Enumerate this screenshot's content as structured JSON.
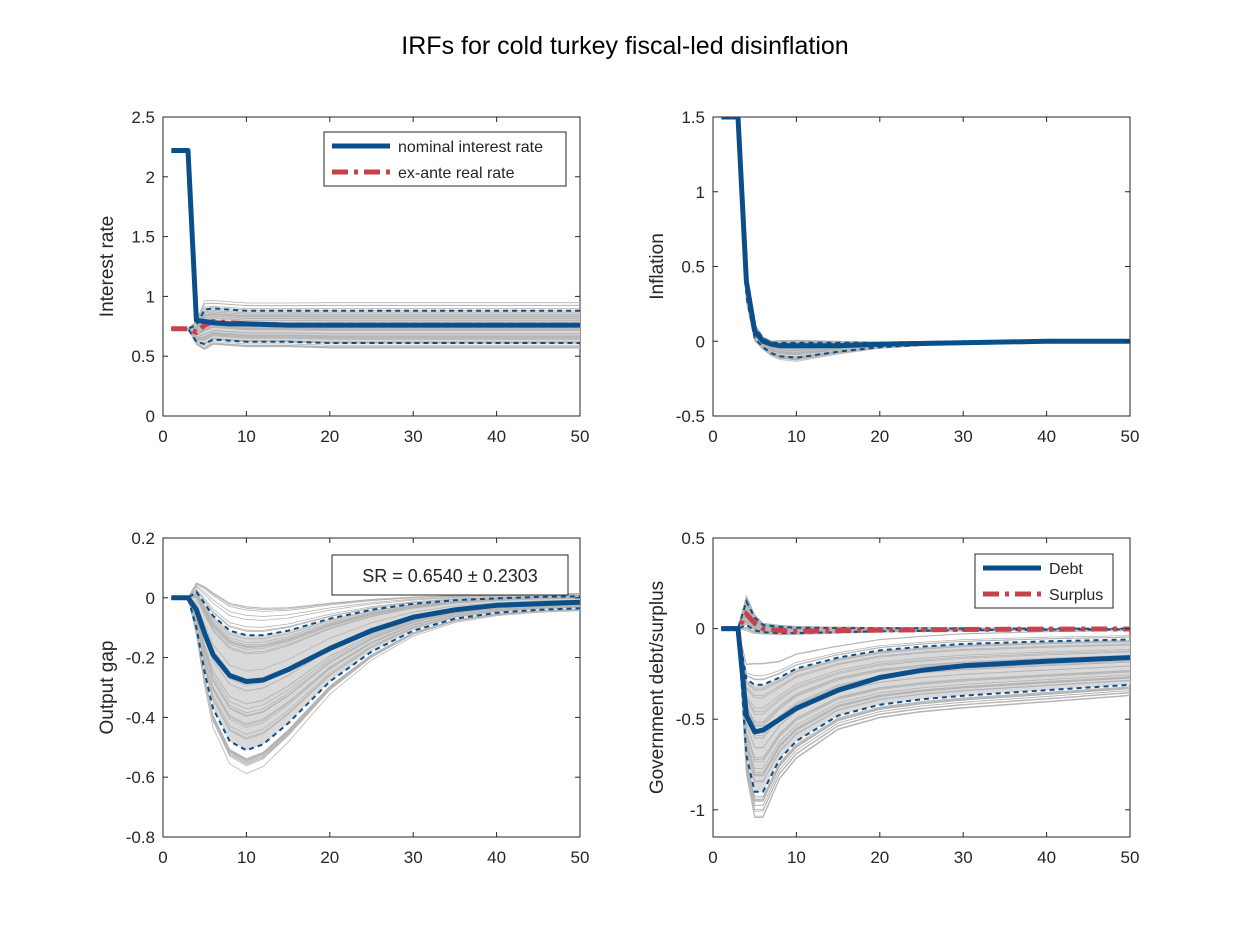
{
  "figure": {
    "title": "IRFs for cold turkey fiscal-led disinflation",
    "colors": {
      "blue": "#0b4f8a",
      "red": "#c8424b",
      "grey": "#b4b4b4",
      "band": "#d9d9d9"
    }
  },
  "chart_data": [
    {
      "type": "line",
      "id": "interest",
      "ylabel": "Interest rate",
      "xlabel": "",
      "xlim": [
        0,
        50
      ],
      "ylim": [
        0,
        2.5
      ],
      "xticks": [
        "0",
        "10",
        "20",
        "30",
        "40",
        "50"
      ],
      "yticks": [
        "0",
        "0.5",
        "1",
        "1.5",
        "2",
        "2.5"
      ],
      "legend": {
        "position": "top-right",
        "entries": [
          "nominal interest rate",
          "ex-ante real rate"
        ]
      },
      "series": [
        {
          "name": "nominal interest rate",
          "style": "solid-blue",
          "x": [
            1,
            2,
            3,
            4,
            5,
            6,
            8,
            10,
            15,
            20,
            30,
            40,
            50
          ],
          "y": [
            2.22,
            2.22,
            2.22,
            0.8,
            0.79,
            0.78,
            0.77,
            0.77,
            0.76,
            0.76,
            0.76,
            0.76,
            0.76
          ]
        },
        {
          "name": "ex-ante real rate",
          "style": "dashdot-red",
          "x": [
            1,
            2,
            3,
            4,
            5,
            6,
            8,
            10,
            15,
            20,
            30,
            40,
            50
          ],
          "y": [
            0.73,
            0.73,
            0.73,
            0.7,
            0.76,
            0.79,
            0.78,
            0.77,
            0.76,
            0.76,
            0.76,
            0.76,
            0.76
          ]
        },
        {
          "style": "dash-band-upper",
          "x": [
            1,
            2,
            3,
            4,
            5,
            6,
            8,
            10,
            15,
            20,
            30,
            40,
            50
          ],
          "y": [
            0.73,
            0.73,
            0.73,
            0.76,
            0.89,
            0.9,
            0.89,
            0.88,
            0.88,
            0.88,
            0.88,
            0.88,
            0.88
          ]
        },
        {
          "style": "dash-band-lower",
          "x": [
            1,
            2,
            3,
            4,
            5,
            6,
            8,
            10,
            15,
            20,
            30,
            40,
            50
          ],
          "y": [
            0.73,
            0.73,
            0.73,
            0.62,
            0.6,
            0.64,
            0.63,
            0.62,
            0.62,
            0.61,
            0.61,
            0.61,
            0.61
          ]
        }
      ]
    },
    {
      "type": "line",
      "id": "inflation",
      "ylabel": "Inflation",
      "xlabel": "",
      "xlim": [
        0,
        50
      ],
      "ylim": [
        -0.5,
        1.5
      ],
      "xticks": [
        "0",
        "10",
        "20",
        "30",
        "40",
        "50"
      ],
      "yticks": [
        "-0.5",
        "0",
        "0.5",
        "1",
        "1.5"
      ],
      "series": [
        {
          "style": "solid-blue",
          "x": [
            1,
            2,
            3,
            4,
            5,
            6,
            7,
            8,
            10,
            15,
            20,
            30,
            40,
            50
          ],
          "y": [
            1.5,
            1.5,
            1.5,
            0.4,
            0.07,
            0,
            -0.02,
            -0.03,
            -0.03,
            -0.03,
            -0.02,
            -0.01,
            0,
            0
          ]
        },
        {
          "style": "dash-band-upper",
          "x": [
            1,
            2,
            3,
            4,
            5,
            6,
            7,
            8,
            10,
            15,
            20,
            30,
            40,
            50
          ],
          "y": [
            1.5,
            1.5,
            1.5,
            0.45,
            0.1,
            0.02,
            -0.01,
            -0.01,
            -0.01,
            -0.01,
            -0.01,
            0,
            0,
            0
          ]
        },
        {
          "style": "dash-band-lower",
          "x": [
            1,
            2,
            3,
            4,
            5,
            6,
            7,
            8,
            10,
            15,
            20,
            30,
            40,
            50
          ],
          "y": [
            1.5,
            1.5,
            1.5,
            0.3,
            0.02,
            -0.04,
            -0.08,
            -0.1,
            -0.11,
            -0.07,
            -0.04,
            -0.01,
            0,
            0
          ]
        }
      ]
    },
    {
      "type": "line",
      "id": "output-gap",
      "ylabel": "Output gap",
      "xlabel": "",
      "xlim": [
        0,
        50
      ],
      "ylim": [
        -0.8,
        0.2
      ],
      "xticks": [
        "0",
        "10",
        "20",
        "30",
        "40",
        "50"
      ],
      "yticks": [
        "-0.8",
        "-0.6",
        "-0.4",
        "-0.2",
        "0",
        "0.2"
      ],
      "annotation": "SR = 0.6540 ± 0.2303",
      "series": [
        {
          "style": "solid-blue",
          "x": [
            1,
            2,
            3,
            4,
            5,
            6,
            8,
            10,
            12,
            15,
            20,
            25,
            30,
            35,
            40,
            45,
            50
          ],
          "y": [
            0,
            0,
            0,
            -0.04,
            -0.12,
            -0.19,
            -0.26,
            -0.28,
            -0.275,
            -0.24,
            -0.17,
            -0.11,
            -0.065,
            -0.04,
            -0.025,
            -0.02,
            -0.015
          ]
        },
        {
          "style": "dash-band-upper",
          "x": [
            1,
            2,
            3,
            4,
            5,
            6,
            8,
            10,
            12,
            15,
            20,
            25,
            30,
            35,
            40,
            45,
            50
          ],
          "y": [
            0,
            0,
            0,
            0.02,
            -0.02,
            -0.06,
            -0.11,
            -0.125,
            -0.125,
            -0.11,
            -0.07,
            -0.04,
            -0.02,
            -0.008,
            -0.002,
            0.003,
            0.005
          ]
        },
        {
          "style": "dash-band-lower",
          "x": [
            1,
            2,
            3,
            4,
            5,
            6,
            8,
            10,
            12,
            15,
            20,
            25,
            30,
            35,
            40,
            45,
            50
          ],
          "y": [
            0,
            0,
            0,
            -0.1,
            -0.25,
            -0.37,
            -0.48,
            -0.51,
            -0.49,
            -0.42,
            -0.28,
            -0.18,
            -0.11,
            -0.07,
            -0.05,
            -0.04,
            -0.035
          ]
        }
      ]
    },
    {
      "type": "line",
      "id": "debt-surplus",
      "ylabel": "Government debt/surplus",
      "xlabel": "",
      "xlim": [
        0,
        50
      ],
      "ylim": [
        -1.15,
        0.5
      ],
      "xticks": [
        "0",
        "10",
        "20",
        "30",
        "40",
        "50"
      ],
      "yticks": [
        "-1",
        "-0.5",
        "0",
        "0.5"
      ],
      "legend": {
        "position": "top-right",
        "entries": [
          "Debt",
          "Surplus"
        ]
      },
      "series": [
        {
          "name": "Debt",
          "style": "solid-blue",
          "x": [
            1,
            2,
            3,
            4,
            5,
            6,
            8,
            10,
            15,
            20,
            25,
            30,
            40,
            50
          ],
          "y": [
            0,
            0,
            0,
            -0.48,
            -0.57,
            -0.56,
            -0.5,
            -0.44,
            -0.34,
            -0.27,
            -0.23,
            -0.205,
            -0.18,
            -0.16
          ]
        },
        {
          "name": "Surplus",
          "style": "dashdot-red",
          "x": [
            1,
            2,
            3,
            4,
            5,
            6,
            8,
            10,
            15,
            20,
            30,
            40,
            50
          ],
          "y": [
            0,
            0,
            0,
            0.08,
            0.03,
            0,
            -0.01,
            -0.015,
            -0.01,
            -0.008,
            -0.005,
            -0.003,
            -0.002
          ]
        },
        {
          "style": "dash-band-upper",
          "x": [
            1,
            2,
            3,
            4,
            5,
            6,
            8,
            10,
            15,
            20,
            25,
            30,
            40,
            50
          ],
          "y": [
            0,
            0,
            0,
            -0.28,
            -0.31,
            -0.31,
            -0.27,
            -0.22,
            -0.16,
            -0.12,
            -0.1,
            -0.085,
            -0.07,
            -0.06
          ]
        },
        {
          "style": "dash-band-lower",
          "x": [
            1,
            2,
            3,
            4,
            5,
            6,
            8,
            10,
            15,
            20,
            25,
            30,
            40,
            50
          ],
          "y": [
            0,
            0,
            0,
            -0.7,
            -0.9,
            -0.9,
            -0.72,
            -0.62,
            -0.48,
            -0.42,
            -0.39,
            -0.37,
            -0.34,
            -0.31
          ]
        },
        {
          "style": "dash-band-upper",
          "x": [
            1,
            2,
            3,
            4,
            5,
            6,
            8,
            10,
            15,
            20,
            30,
            40,
            50
          ],
          "y": [
            0,
            0,
            0,
            0.15,
            0.06,
            0.02,
            0.01,
            0.005,
            0.003,
            0.002,
            0.001,
            0,
            0
          ]
        },
        {
          "style": "dash-band-lower",
          "x": [
            1,
            2,
            3,
            4,
            5,
            6,
            8,
            10,
            15,
            20,
            30,
            40,
            50
          ],
          "y": [
            0,
            0,
            0,
            0.02,
            -0.01,
            -0.02,
            -0.025,
            -0.025,
            -0.02,
            -0.015,
            -0.01,
            -0.006,
            -0.004
          ]
        }
      ]
    }
  ]
}
